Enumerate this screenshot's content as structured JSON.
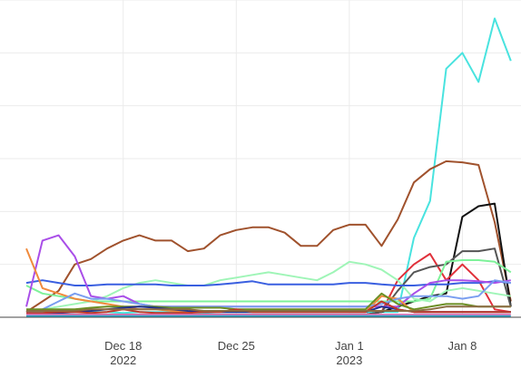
{
  "chart_data": {
    "type": "line",
    "title": "",
    "xlabel": "",
    "ylabel": "",
    "x_start": "2022-12-12",
    "x_end": "2023-01-10",
    "x_ticks": [
      {
        "date": "2022-12-18",
        "line1": "Dec 18",
        "line2": "2022"
      },
      {
        "date": "2022-12-25",
        "line1": "Dec 25",
        "line2": ""
      },
      {
        "date": "2023-01-01",
        "line1": "Jan 1",
        "line2": "2023"
      },
      {
        "date": "2023-01-08",
        "line1": "Jan 8",
        "line2": ""
      }
    ],
    "y_tick_labels_visible": false,
    "ylim": [
      0,
      6.0
    ],
    "grid": true,
    "legend": "none",
    "series": [
      {
        "color": "#49e3df",
        "values": [
          0.1,
          0.1,
          0.08,
          0.1,
          0.1,
          0.1,
          0.08,
          0.1,
          0.1,
          0.1,
          0.1,
          0.08,
          0.1,
          0.1,
          0.1,
          0.1,
          0.1,
          0.1,
          0.1,
          0.1,
          0.1,
          0.1,
          0.1,
          0.1,
          1.5,
          2.2,
          4.7,
          5.0,
          4.45,
          5.65,
          4.85
        ]
      },
      {
        "color": "#a0522d",
        "values": [
          0.1,
          0.3,
          0.5,
          1.0,
          1.1,
          1.3,
          1.45,
          1.55,
          1.45,
          1.45,
          1.25,
          1.3,
          1.55,
          1.65,
          1.7,
          1.7,
          1.6,
          1.35,
          1.35,
          1.65,
          1.75,
          1.75,
          1.35,
          1.85,
          2.55,
          2.8,
          2.95,
          2.93,
          2.88,
          1.8,
          0.3
        ]
      },
      {
        "color": "#111111",
        "values": [
          0.05,
          0.05,
          0.05,
          0.05,
          0.05,
          0.05,
          0.05,
          0.05,
          0.05,
          0.05,
          0.05,
          0.05,
          0.05,
          0.05,
          0.05,
          0.05,
          0.05,
          0.05,
          0.05,
          0.05,
          0.05,
          0.05,
          0.1,
          0.2,
          0.3,
          0.4,
          0.45,
          1.9,
          2.1,
          2.15,
          0.2
        ]
      },
      {
        "color": "#e0303a",
        "values": [
          0.05,
          0.05,
          0.05,
          0.05,
          0.05,
          0.05,
          0.05,
          0.05,
          0.05,
          0.05,
          0.05,
          0.05,
          0.05,
          0.05,
          0.05,
          0.05,
          0.05,
          0.05,
          0.05,
          0.05,
          0.05,
          0.05,
          0.1,
          0.7,
          1.0,
          1.2,
          0.7,
          1.0,
          0.7,
          0.15,
          0.1
        ]
      },
      {
        "color": "#555555",
        "values": [
          0.05,
          0.05,
          0.05,
          0.05,
          0.05,
          0.05,
          0.05,
          0.05,
          0.05,
          0.05,
          0.05,
          0.05,
          0.05,
          0.05,
          0.05,
          0.05,
          0.05,
          0.05,
          0.05,
          0.05,
          0.05,
          0.05,
          0.1,
          0.5,
          0.85,
          0.95,
          1.0,
          1.25,
          1.25,
          1.3,
          0.2
        ]
      },
      {
        "color": "#7ef29a",
        "values": [
          0.6,
          0.45,
          0.4,
          0.35,
          0.3,
          0.3,
          0.3,
          0.3,
          0.3,
          0.3,
          0.3,
          0.3,
          0.3,
          0.3,
          0.3,
          0.3,
          0.3,
          0.3,
          0.3,
          0.3,
          0.3,
          0.3,
          0.3,
          0.3,
          0.3,
          0.35,
          1.05,
          1.08,
          1.08,
          1.05,
          0.85
        ]
      },
      {
        "color": "#9ff5b7",
        "values": [
          0.1,
          0.15,
          0.2,
          0.25,
          0.3,
          0.4,
          0.55,
          0.65,
          0.7,
          0.65,
          0.6,
          0.6,
          0.7,
          0.75,
          0.8,
          0.85,
          0.8,
          0.75,
          0.7,
          0.85,
          1.05,
          1.0,
          0.9,
          0.7,
          0.35,
          0.3,
          0.5,
          0.55,
          0.5,
          0.45,
          0.4
        ]
      },
      {
        "color": "#3a5fe0",
        "values": [
          0.65,
          0.7,
          0.65,
          0.6,
          0.6,
          0.62,
          0.62,
          0.62,
          0.62,
          0.6,
          0.6,
          0.6,
          0.62,
          0.65,
          0.68,
          0.62,
          0.62,
          0.62,
          0.62,
          0.62,
          0.65,
          0.65,
          0.62,
          0.6,
          0.6,
          0.62,
          0.62,
          0.65,
          0.65,
          0.68,
          0.65
        ]
      },
      {
        "color": "#a94ee8",
        "values": [
          0.2,
          1.45,
          1.55,
          1.15,
          0.4,
          0.35,
          0.4,
          0.25,
          0.2,
          0.2,
          0.2,
          0.2,
          0.2,
          0.2,
          0.2,
          0.2,
          0.2,
          0.2,
          0.2,
          0.2,
          0.2,
          0.2,
          0.2,
          0.2,
          0.45,
          0.65,
          0.7,
          0.7,
          0.68,
          0.65,
          0.7
        ]
      },
      {
        "color": "#f08a3c",
        "values": [
          1.3,
          0.55,
          0.45,
          0.35,
          0.3,
          0.25,
          0.2,
          0.15,
          0.15,
          0.12,
          0.1,
          0.1,
          0.12,
          0.12,
          0.1,
          0.1,
          0.1,
          0.1,
          0.1,
          0.1,
          0.1,
          0.1,
          0.4,
          0.35,
          0.1,
          0.1,
          0.1,
          0.1,
          0.1,
          0.1,
          0.1
        ]
      },
      {
        "color": "#7a9ef0",
        "values": [
          0.1,
          0.15,
          0.3,
          0.45,
          0.35,
          0.35,
          0.3,
          0.25,
          0.2,
          0.2,
          0.2,
          0.2,
          0.2,
          0.2,
          0.2,
          0.2,
          0.2,
          0.2,
          0.2,
          0.2,
          0.2,
          0.2,
          0.25,
          0.35,
          0.4,
          0.4,
          0.4,
          0.35,
          0.4,
          0.7,
          0.65
        ]
      },
      {
        "color": "#6b8e23",
        "values": [
          0.15,
          0.15,
          0.15,
          0.15,
          0.18,
          0.2,
          0.2,
          0.2,
          0.2,
          0.18,
          0.18,
          0.18,
          0.18,
          0.15,
          0.15,
          0.15,
          0.15,
          0.15,
          0.15,
          0.15,
          0.15,
          0.15,
          0.45,
          0.25,
          0.15,
          0.2,
          0.25,
          0.25,
          0.2,
          0.2,
          0.2
        ]
      },
      {
        "color": "#1f2f8f",
        "values": [
          0.05,
          0.05,
          0.08,
          0.1,
          0.12,
          0.15,
          0.18,
          0.2,
          0.18,
          0.15,
          0.12,
          0.1,
          0.1,
          0.1,
          0.1,
          0.1,
          0.1,
          0.1,
          0.1,
          0.1,
          0.1,
          0.1,
          0.2,
          0.15,
          0.1,
          0.1,
          0.1,
          0.1,
          0.1,
          0.1,
          0.1
        ]
      },
      {
        "color": "#c0392b",
        "values": [
          0.08,
          0.08,
          0.1,
          0.1,
          0.08,
          0.1,
          0.15,
          0.1,
          0.08,
          0.08,
          0.08,
          0.1,
          0.1,
          0.15,
          0.1,
          0.1,
          0.1,
          0.1,
          0.1,
          0.1,
          0.1,
          0.1,
          0.3,
          0.15,
          0.1,
          0.1,
          0.1,
          0.1,
          0.1,
          0.1,
          0.1
        ]
      },
      {
        "color": "#e573b8",
        "values": [
          0.05,
          0.05,
          0.05,
          0.05,
          0.05,
          0.05,
          0.05,
          0.05,
          0.05,
          0.05,
          0.05,
          0.05,
          0.05,
          0.05,
          0.05,
          0.05,
          0.05,
          0.05,
          0.05,
          0.05,
          0.05,
          0.05,
          0.05,
          0.05,
          0.05,
          0.05,
          0.05,
          0.05,
          0.05,
          0.05,
          0.05
        ]
      },
      {
        "color": "#8b6c42",
        "values": [
          0.12,
          0.12,
          0.12,
          0.12,
          0.15,
          0.15,
          0.15,
          0.15,
          0.15,
          0.15,
          0.15,
          0.12,
          0.12,
          0.12,
          0.12,
          0.12,
          0.12,
          0.12,
          0.12,
          0.12,
          0.12,
          0.12,
          0.12,
          0.12,
          0.12,
          0.15,
          0.2,
          0.2,
          0.2,
          0.2,
          0.2
        ]
      },
      {
        "color": "#2ca6c9",
        "values": [
          0.02,
          0.02,
          0.02,
          0.02,
          0.02,
          0.02,
          0.02,
          0.02,
          0.02,
          0.02,
          0.02,
          0.02,
          0.02,
          0.02,
          0.02,
          0.02,
          0.02,
          0.02,
          0.02,
          0.02,
          0.02,
          0.02,
          0.02,
          0.02,
          0.02,
          0.02,
          0.02,
          0.02,
          0.02,
          0.02,
          0.02
        ]
      }
    ]
  }
}
